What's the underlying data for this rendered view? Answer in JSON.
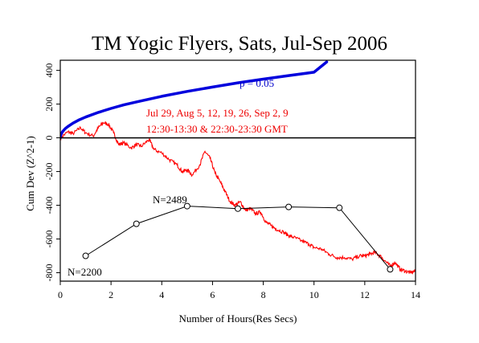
{
  "chart_data": {
    "type": "line",
    "title": "TM Yogic Flyers, Sats, Jul-Sep 2006",
    "xlabel": "Number of Hours(Res Secs)",
    "ylabel": "Cum Dev (Z^2-1)",
    "xlim": [
      0,
      14
    ],
    "ylim": [
      -850,
      460
    ],
    "x_ticks": [
      0,
      2,
      4,
      6,
      8,
      10,
      12,
      14
    ],
    "y_ticks": [
      -800,
      -600,
      -400,
      -200,
      0,
      200,
      400
    ],
    "grid": false,
    "legend": "none",
    "annotations": {
      "p_label": "p = 0.05",
      "dates_line1": "Jul 29, Aug 5, 12, 19, 26, Sep 2, 9",
      "dates_line2": "12:30-13:30 & 22:30-23:30 GMT",
      "n_low": "N=2200",
      "n_high": "N=2489"
    },
    "colors": {
      "cumdev": "#ff0000",
      "probability": "#0000dd",
      "network_size": "#000000",
      "baseline": "#000000",
      "annotation_red": "#ee0000",
      "annotation_blue": "#0000cc"
    },
    "series": [
      {
        "type": "line",
        "x": [
          0,
          0.3,
          0.5,
          0.8,
          1.0,
          1.3,
          1.5,
          1.7,
          1.9,
          2.1,
          2.3,
          2.5,
          2.8,
          3.0,
          3.2,
          3.5,
          3.7,
          4.0,
          4.3,
          4.6,
          4.8,
          5.0,
          5.2,
          5.5,
          5.7,
          5.9,
          6.1,
          6.3,
          6.5,
          6.7,
          6.9,
          7.1,
          7.3,
          7.5,
          7.7,
          7.9,
          8.1,
          8.3,
          8.5,
          8.8,
          9.0,
          9.2,
          9.5,
          9.8,
          10.0,
          10.3,
          10.6,
          10.9,
          11.2,
          11.5,
          11.8,
          12.0,
          12.2,
          12.4,
          12.6,
          12.8,
          13.0,
          13.2,
          13.4,
          13.6,
          13.8,
          14.0
        ],
        "y": [
          0,
          35,
          25,
          60,
          30,
          10,
          60,
          90,
          80,
          30,
          -40,
          -30,
          -60,
          -40,
          -50,
          -10,
          -70,
          -90,
          -130,
          -160,
          -200,
          -190,
          -220,
          -160,
          -80,
          -120,
          -210,
          -260,
          -320,
          -380,
          -400,
          -380,
          -430,
          -420,
          -450,
          -440,
          -500,
          -520,
          -540,
          -560,
          -580,
          -590,
          -610,
          -630,
          -650,
          -660,
          -690,
          -710,
          -710,
          -720,
          -700,
          -700,
          -690,
          -680,
          -700,
          -730,
          -760,
          -740,
          -780,
          -790,
          -800,
          -790
        ]
      },
      {
        "type": "line",
        "x": [
          0,
          0.02,
          0.05,
          0.1,
          0.2,
          0.3,
          0.5,
          0.75,
          1.0,
          1.5,
          2.0,
          2.5,
          3.0,
          4.0,
          5.0,
          6.0,
          7.0,
          8.0,
          9.0,
          10.0,
          10.5
        ],
        "y": [
          0,
          17,
          27,
          39,
          55,
          67,
          87,
          107,
          123,
          151,
          174,
          195,
          213,
          246,
          275,
          301,
          326,
          348,
          369,
          389,
          450
        ]
      },
      {
        "type": "line",
        "x": [
          1,
          3,
          5,
          7,
          9,
          11,
          13
        ],
        "y": [
          -700,
          -510,
          -405,
          -420,
          -410,
          -415,
          -780
        ]
      }
    ]
  }
}
